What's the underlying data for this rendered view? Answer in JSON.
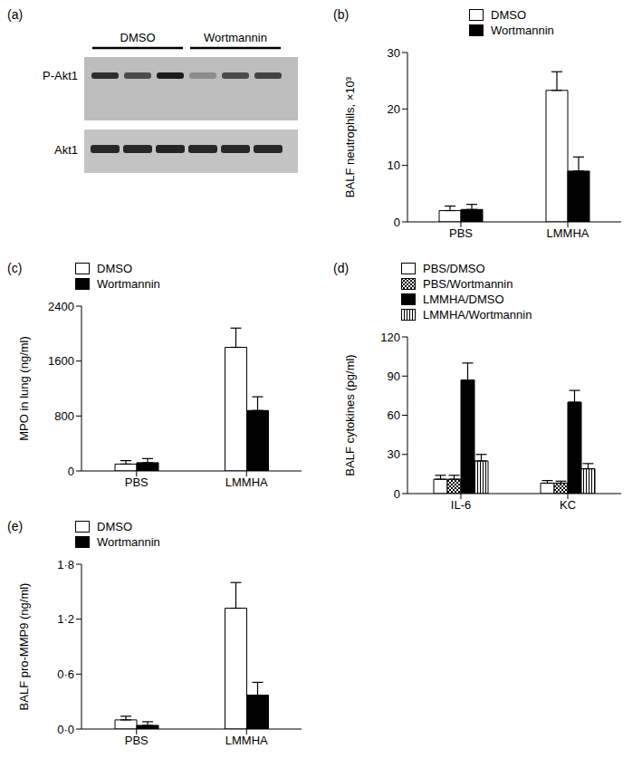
{
  "blot": {
    "title": "(a)",
    "groups": [
      "DMSO",
      "Wortmannin"
    ],
    "rows": [
      "P-Akt1",
      "Akt1"
    ]
  },
  "chart_data": [
    {
      "type": "bar",
      "title": "(b)",
      "y_label": "BALF neutrophils, ×10³",
      "categories": [
        "PBS",
        "LMMHA"
      ],
      "series": [
        {
          "name": "DMSO",
          "color": "#ffffff",
          "values": [
            2,
            23.3
          ],
          "errors": [
            0.8,
            3.3
          ]
        },
        {
          "name": "Wortmannin",
          "color": "#000000",
          "values": [
            2.2,
            9
          ],
          "errors": [
            0.9,
            2.5
          ]
        }
      ],
      "ylim": [
        0,
        30
      ],
      "yticks": [
        0,
        10,
        20,
        30
      ],
      "legend": "upper right"
    },
    {
      "type": "bar",
      "title": "(c)",
      "y_label": "MPO in lung (ng/ml)",
      "categories": [
        "PBS",
        "LMMHA"
      ],
      "series": [
        {
          "name": "DMSO",
          "color": "#ffffff",
          "values": [
            100,
            1800
          ],
          "errors": [
            50,
            280
          ]
        },
        {
          "name": "Wortmannin",
          "color": "#000000",
          "values": [
            120,
            880
          ],
          "errors": [
            60,
            200
          ]
        }
      ],
      "ylim": [
        0,
        2400
      ],
      "yticks": [
        0,
        800,
        1600,
        2400
      ],
      "legend": "upper left"
    },
    {
      "type": "bar",
      "title": "(d)",
      "y_label": "BALF cytokines (pg/ml)",
      "categories": [
        "IL-6",
        "KC"
      ],
      "series": [
        {
          "name": "PBS/DMSO",
          "color": "#ffffff",
          "values": [
            11,
            8
          ],
          "errors": [
            3,
            2
          ]
        },
        {
          "name": "PBS/Wortmannin",
          "color": "#ffffff",
          "values": [
            11,
            8
          ],
          "errors": [
            3,
            1.5
          ]
        },
        {
          "name": "LMMHA/DMSO",
          "color": "#000000",
          "values": [
            87,
            70
          ],
          "errors": [
            13,
            9
          ]
        },
        {
          "name": "LMMHA/Wortmannin",
          "color": "#ffffff",
          "values": [
            25,
            19
          ],
          "errors": [
            5,
            4
          ]
        }
      ],
      "ylim": [
        0,
        120
      ],
      "yticks": [
        0,
        30,
        60,
        90,
        120
      ],
      "legend": "upper left"
    },
    {
      "type": "bar",
      "title": "(e)",
      "y_label": "BALF pro-MMP9 (ng/ml)",
      "categories": [
        "PBS",
        "LMMHA"
      ],
      "series": [
        {
          "name": "DMSO",
          "color": "#ffffff",
          "values": [
            0.1,
            1.32
          ],
          "errors": [
            0.04,
            0.28
          ]
        },
        {
          "name": "Wortmannin",
          "color": "#000000",
          "values": [
            0.04,
            0.37
          ],
          "errors": [
            0.04,
            0.14
          ]
        }
      ],
      "ylim": [
        0,
        1.8
      ],
      "yticks": [
        {
          "value": 0,
          "label": "0·0"
        },
        {
          "value": 0.6,
          "label": "0·6"
        },
        {
          "value": 1.2,
          "label": "1·2"
        },
        {
          "value": 1.8,
          "label": "1·8"
        }
      ],
      "legend": "upper left"
    }
  ]
}
